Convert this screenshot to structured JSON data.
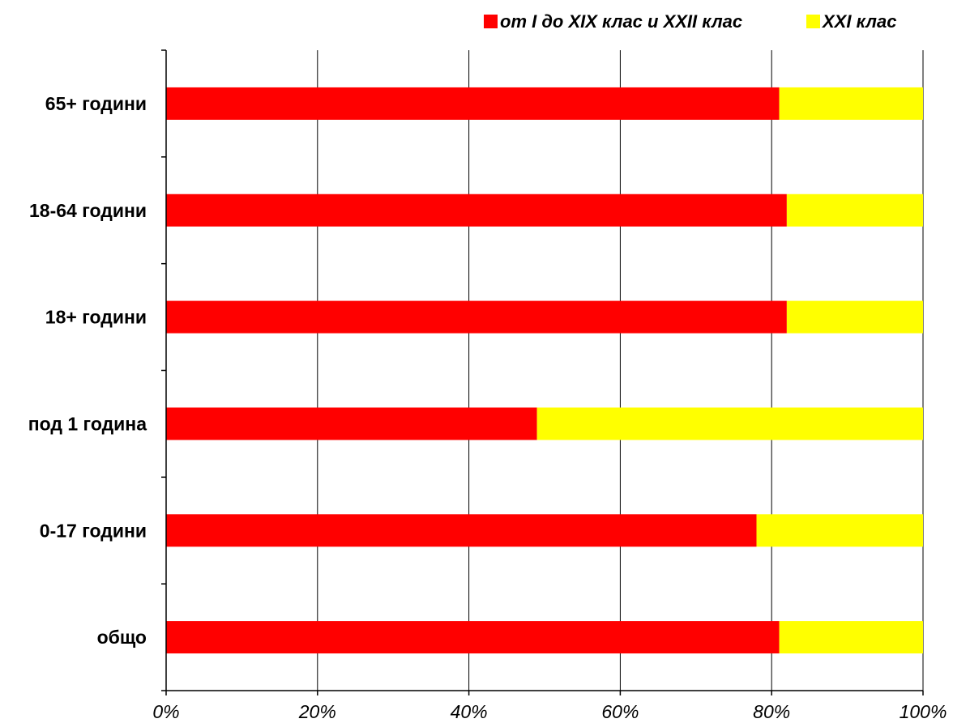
{
  "chart_data": {
    "type": "bar",
    "orientation": "horizontal",
    "stacked": "percent",
    "categories": [
      "65+ години",
      "18-64 години",
      "18+ години",
      "под 1 година",
      "0-17 години",
      "общо"
    ],
    "series": [
      {
        "name": "от I до XIX клас и XXII клас",
        "color": "#ff0000",
        "values": [
          81,
          82,
          82,
          49,
          78,
          81
        ]
      },
      {
        "name": "XXI клас",
        "color": "#ffff00",
        "values": [
          19,
          18,
          18,
          51,
          22,
          19
        ]
      }
    ],
    "xlim": [
      0,
      100
    ],
    "xticks": [
      0,
      20,
      40,
      60,
      80,
      100
    ],
    "xtick_labels": [
      "0%",
      "20%",
      "40%",
      "60%",
      "80%",
      "100%"
    ],
    "grid": "vertical",
    "legend_position": "top-right",
    "title": "",
    "xlabel": "",
    "ylabel": ""
  }
}
